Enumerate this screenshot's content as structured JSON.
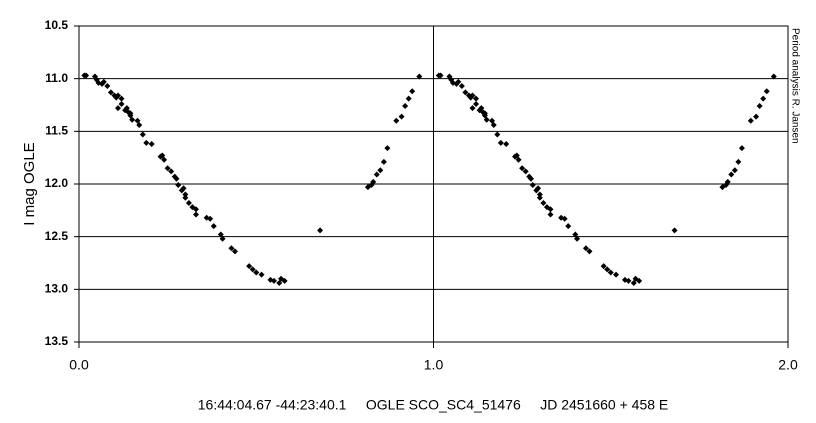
{
  "chart_data": {
    "type": "scatter",
    "y_label": "I mag OGLE",
    "side_note": "Period analysis R. Jansen",
    "caption": "16:44:04.67 -44:23:40.1     OGLE SCO_SC4_51476     JD 2451660 + 458 E",
    "x": [
      0.015,
      0.02,
      0.045,
      0.05,
      0.055,
      0.065,
      0.07,
      0.08,
      0.09,
      0.1,
      0.105,
      0.11,
      0.12,
      0.11,
      0.12,
      0.13,
      0.135,
      0.14,
      0.145,
      0.145,
      0.15,
      0.165,
      0.17,
      0.18,
      0.19,
      0.205,
      0.23,
      0.235,
      0.24,
      0.25,
      0.26,
      0.27,
      0.275,
      0.28,
      0.295,
      0.29,
      0.3,
      0.3,
      0.31,
      0.32,
      0.33,
      0.33,
      0.36,
      0.37,
      0.38,
      0.4,
      0.405,
      0.43,
      0.44,
      0.48,
      0.49,
      0.5,
      0.515,
      0.54,
      0.55,
      0.565,
      0.57,
      0.58,
      0.68,
      0.815,
      0.825,
      0.83,
      0.84,
      0.85,
      0.86,
      0.87,
      0.895,
      0.91,
      0.92,
      0.93,
      0.94,
      0.96,
      1.015,
      1.02,
      1.045,
      1.05,
      1.055,
      1.065,
      1.07,
      1.08,
      1.09,
      1.1,
      1.105,
      1.11,
      1.12,
      1.11,
      1.12,
      1.13,
      1.135,
      1.14,
      1.145,
      1.145,
      1.15,
      1.165,
      1.17,
      1.18,
      1.19,
      1.205,
      1.23,
      1.235,
      1.24,
      1.25,
      1.26,
      1.27,
      1.275,
      1.28,
      1.295,
      1.29,
      1.3,
      1.3,
      1.31,
      1.32,
      1.33,
      1.33,
      1.36,
      1.37,
      1.38,
      1.4,
      1.405,
      1.43,
      1.44,
      1.48,
      1.49,
      1.5,
      1.515,
      1.54,
      1.55,
      1.565,
      1.57,
      1.58,
      1.68,
      1.815,
      1.825,
      1.83,
      1.84,
      1.85,
      1.86,
      1.87,
      1.895,
      1.91,
      1.92,
      1.93,
      1.94,
      1.96
    ],
    "values": [
      10.97,
      10.97,
      10.98,
      11.01,
      11.04,
      11.05,
      11.03,
      11.07,
      11.13,
      11.16,
      11.18,
      11.16,
      11.19,
      11.28,
      11.24,
      11.3,
      11.28,
      11.32,
      11.35,
      11.33,
      11.39,
      11.4,
      11.44,
      11.53,
      11.61,
      11.62,
      11.74,
      11.73,
      11.77,
      11.85,
      11.88,
      11.93,
      11.95,
      12.01,
      12.04,
      12.06,
      12.1,
      12.13,
      12.18,
      12.22,
      12.24,
      12.29,
      12.32,
      12.33,
      12.4,
      12.48,
      12.52,
      12.61,
      12.64,
      12.78,
      12.81,
      12.84,
      12.86,
      12.91,
      12.92,
      12.94,
      12.9,
      12.92,
      12.44,
      12.03,
      12.01,
      11.98,
      11.91,
      11.87,
      11.79,
      11.66,
      11.4,
      11.36,
      11.26,
      11.19,
      11.12,
      10.98,
      10.97,
      10.97,
      10.98,
      11.01,
      11.04,
      11.05,
      11.03,
      11.07,
      11.13,
      11.16,
      11.18,
      11.16,
      11.19,
      11.28,
      11.24,
      11.3,
      11.28,
      11.32,
      11.35,
      11.33,
      11.39,
      11.4,
      11.44,
      11.53,
      11.61,
      11.62,
      11.74,
      11.73,
      11.77,
      11.85,
      11.88,
      11.93,
      11.95,
      12.01,
      12.04,
      12.06,
      12.1,
      12.13,
      12.18,
      12.22,
      12.24,
      12.29,
      12.32,
      12.33,
      12.4,
      12.48,
      12.52,
      12.61,
      12.64,
      12.78,
      12.81,
      12.84,
      12.86,
      12.91,
      12.92,
      12.94,
      12.9,
      12.92,
      12.44,
      12.03,
      12.01,
      11.98,
      11.91,
      11.87,
      11.79,
      11.66,
      11.4,
      11.36,
      11.26,
      11.19,
      11.12,
      10.98
    ],
    "color": "#000000",
    "xlim": [
      0,
      2
    ],
    "xticks": [
      {
        "value": 0,
        "label": "0.0"
      },
      {
        "value": 1,
        "label": "1.0"
      },
      {
        "value": 2,
        "label": "2.0"
      }
    ],
    "ylim": [
      10.5,
      13.5
    ],
    "y_reversed": true,
    "yticks": [
      10.5,
      {
        "value": 11,
        "label": "11.0"
      },
      11.5,
      {
        "value": 12,
        "label": "12.0"
      },
      12.5,
      {
        "value": 13,
        "label": "13.0"
      },
      13.5
    ],
    "grid": true
  }
}
